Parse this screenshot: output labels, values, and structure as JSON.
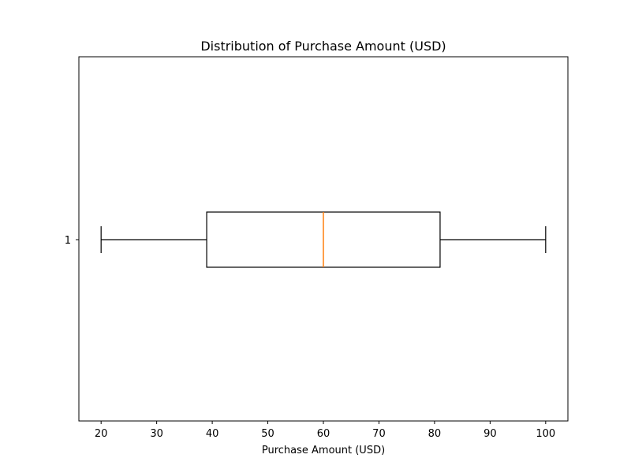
{
  "chart_data": {
    "type": "boxplot",
    "orientation": "horizontal",
    "title": "Distribution of Purchase Amount (USD)",
    "xlabel": "Purchase Amount (USD)",
    "ylabel": "",
    "xlim": [
      16,
      104
    ],
    "x_ticks": [
      20,
      30,
      40,
      50,
      60,
      70,
      80,
      90,
      100
    ],
    "categories": [
      "1"
    ],
    "series": [
      {
        "whisker_low": 20,
        "q1": 39,
        "median": 60,
        "q3": 81,
        "whisker_high": 100
      }
    ],
    "grid": false,
    "colors": {
      "box": "#000000",
      "median": "#ff7f0e",
      "frame": "#000000"
    }
  }
}
